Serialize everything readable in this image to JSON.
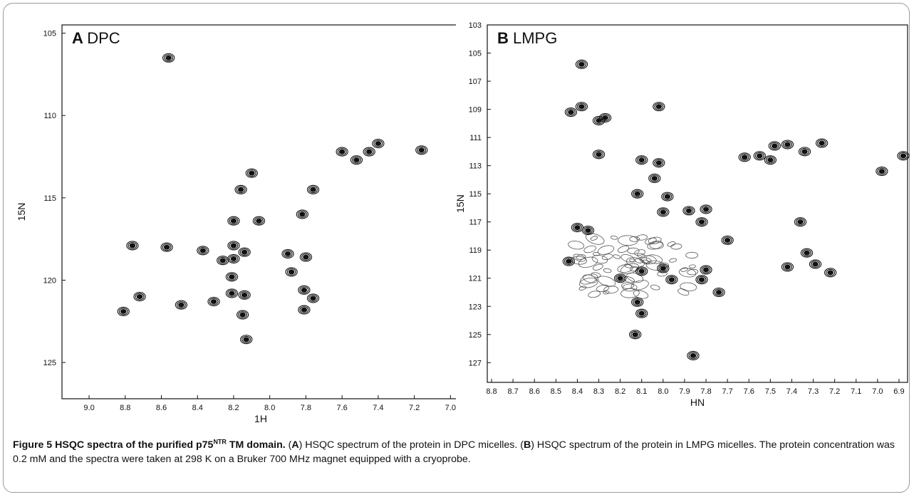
{
  "chart_data": [
    {
      "type": "scatter",
      "panel_letter": "A",
      "panel_name": "DPC",
      "xlabel": "1H",
      "ylabel": "15N",
      "xlim": [
        9.15,
        6.95
      ],
      "ylim": [
        127.2,
        104.5
      ],
      "x_ticks": [
        "9.0",
        "8.8",
        "8.6",
        "8.4",
        "8.2",
        "8.0",
        "7.8",
        "7.6",
        "7.4",
        "7.2",
        "7.0"
      ],
      "y_ticks": [
        "105",
        "110",
        "115",
        "120",
        "125"
      ],
      "grid": false,
      "peaks": [
        {
          "x": 8.56,
          "y": 106.5
        },
        {
          "x": 7.6,
          "y": 112.2
        },
        {
          "x": 7.52,
          "y": 112.7
        },
        {
          "x": 7.45,
          "y": 112.2
        },
        {
          "x": 7.4,
          "y": 111.7
        },
        {
          "x": 7.16,
          "y": 112.1
        },
        {
          "x": 8.1,
          "y": 113.5
        },
        {
          "x": 8.16,
          "y": 114.5
        },
        {
          "x": 7.76,
          "y": 114.5
        },
        {
          "x": 8.2,
          "y": 116.4
        },
        {
          "x": 8.06,
          "y": 116.4
        },
        {
          "x": 7.82,
          "y": 116.0
        },
        {
          "x": 8.76,
          "y": 117.9
        },
        {
          "x": 8.57,
          "y": 118.0
        },
        {
          "x": 8.37,
          "y": 118.2
        },
        {
          "x": 8.2,
          "y": 117.9
        },
        {
          "x": 8.14,
          "y": 118.3
        },
        {
          "x": 8.2,
          "y": 118.7
        },
        {
          "x": 8.26,
          "y": 118.8
        },
        {
          "x": 7.9,
          "y": 118.4
        },
        {
          "x": 7.8,
          "y": 118.6
        },
        {
          "x": 7.88,
          "y": 119.5
        },
        {
          "x": 8.21,
          "y": 119.8
        },
        {
          "x": 8.72,
          "y": 121.0
        },
        {
          "x": 8.81,
          "y": 121.9
        },
        {
          "x": 8.49,
          "y": 121.5
        },
        {
          "x": 8.31,
          "y": 121.3
        },
        {
          "x": 8.21,
          "y": 120.8
        },
        {
          "x": 8.14,
          "y": 120.9
        },
        {
          "x": 7.81,
          "y": 120.6
        },
        {
          "x": 7.76,
          "y": 121.1
        },
        {
          "x": 8.15,
          "y": 122.1
        },
        {
          "x": 8.13,
          "y": 123.6
        },
        {
          "x": 7.81,
          "y": 121.8
        }
      ]
    },
    {
      "type": "scatter",
      "panel_letter": "B",
      "panel_name": "LMPG",
      "xlabel": "HN",
      "ylabel": "15N",
      "xlim": [
        8.82,
        6.86
      ],
      "ylim": [
        128.4,
        103.0
      ],
      "x_ticks": [
        "8.8",
        "8.7",
        "8.6",
        "8.5",
        "8.4",
        "8.3",
        "8.2",
        "8.1",
        "8.0",
        "7.9",
        "7.8",
        "7.7",
        "7.6",
        "7.5",
        "7.4",
        "7.3",
        "7.2",
        "7.1",
        "7.0",
        "6.9"
      ],
      "y_ticks": [
        "103",
        "105",
        "107",
        "109",
        "111",
        "113",
        "115",
        "117",
        "119",
        "121",
        "123",
        "125",
        "127"
      ],
      "grid": false,
      "peaks": [
        {
          "x": 8.38,
          "y": 105.8
        },
        {
          "x": 8.43,
          "y": 109.2
        },
        {
          "x": 8.38,
          "y": 108.8
        },
        {
          "x": 8.3,
          "y": 109.8
        },
        {
          "x": 8.27,
          "y": 109.6
        },
        {
          "x": 8.02,
          "y": 108.8
        },
        {
          "x": 8.3,
          "y": 112.2
        },
        {
          "x": 8.1,
          "y": 112.6
        },
        {
          "x": 8.02,
          "y": 112.8
        },
        {
          "x": 8.04,
          "y": 113.9
        },
        {
          "x": 7.98,
          "y": 115.2
        },
        {
          "x": 8.12,
          "y": 115.0
        },
        {
          "x": 8.0,
          "y": 116.3
        },
        {
          "x": 7.88,
          "y": 116.2
        },
        {
          "x": 7.8,
          "y": 116.1
        },
        {
          "x": 8.4,
          "y": 117.4
        },
        {
          "x": 8.35,
          "y": 117.6
        },
        {
          "x": 7.82,
          "y": 117.0
        },
        {
          "x": 7.7,
          "y": 118.3
        },
        {
          "x": 7.62,
          "y": 112.4
        },
        {
          "x": 7.55,
          "y": 112.3
        },
        {
          "x": 7.5,
          "y": 112.6
        },
        {
          "x": 7.48,
          "y": 111.6
        },
        {
          "x": 7.42,
          "y": 111.5
        },
        {
          "x": 7.34,
          "y": 112.0
        },
        {
          "x": 7.26,
          "y": 111.4
        },
        {
          "x": 6.98,
          "y": 113.4
        },
        {
          "x": 6.88,
          "y": 112.3
        },
        {
          "x": 8.44,
          "y": 119.8
        },
        {
          "x": 8.2,
          "y": 121.0
        },
        {
          "x": 8.1,
          "y": 120.5
        },
        {
          "x": 8.0,
          "y": 120.3
        },
        {
          "x": 7.96,
          "y": 121.1
        },
        {
          "x": 7.8,
          "y": 120.4
        },
        {
          "x": 7.82,
          "y": 121.1
        },
        {
          "x": 7.74,
          "y": 122.0
        },
        {
          "x": 8.12,
          "y": 122.7
        },
        {
          "x": 8.1,
          "y": 123.5
        },
        {
          "x": 8.13,
          "y": 125.0
        },
        {
          "x": 7.86,
          "y": 126.5
        },
        {
          "x": 7.42,
          "y": 120.2
        },
        {
          "x": 7.36,
          "y": 117.0
        },
        {
          "x": 7.29,
          "y": 120.0
        },
        {
          "x": 7.33,
          "y": 119.2
        },
        {
          "x": 7.22,
          "y": 120.6
        }
      ],
      "crowded_region": {
        "x": [
          8.42,
          7.84
        ],
        "y": [
          118.0,
          122.2
        ]
      }
    }
  ],
  "caption": {
    "title_prefix": "Figure 5 HSQC spectra of the purified p75",
    "title_sup": "NTR",
    "title_suffix": " TM domain.",
    "body": [
      {
        "t": " ("
      },
      {
        "t": "A",
        "b": true
      },
      {
        "t": ") HSQC spectrum of the protein in DPC micelles. ("
      },
      {
        "t": "B",
        "b": true
      },
      {
        "t": ") HSQC spectrum of the protein in LMPG micelles. The protein concentration was 0.2 mM and the spectra were taken at 298 K on a Bruker 700 MHz magnet equipped with a cryoprobe."
      }
    ]
  }
}
